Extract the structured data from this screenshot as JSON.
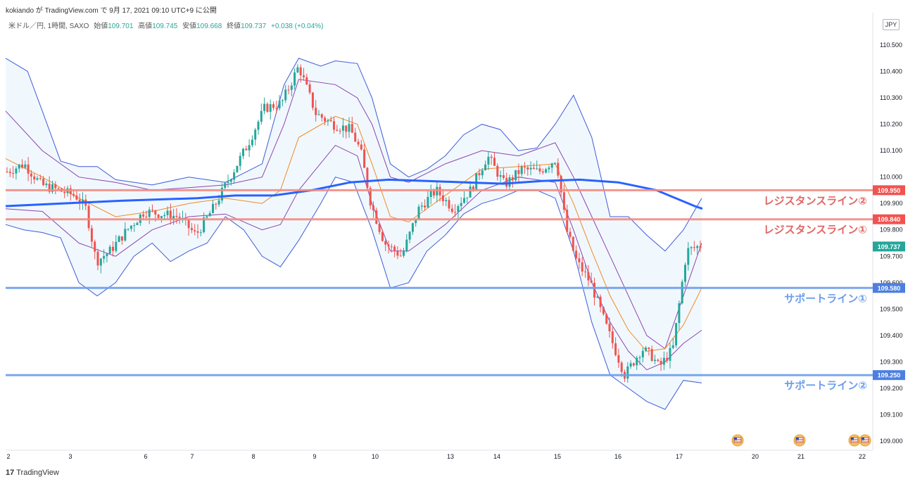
{
  "header": {
    "attribution": "kokiando が TradingView.com で 9月 17, 2021 09:10 UTC+9 に公開",
    "symbol": "米ドル／円, 1時間, SAXO",
    "open_label": "始値",
    "open_value": "109.701",
    "high_label": "高値",
    "high_value": "109.745",
    "low_label": "安値",
    "low_value": "109.668",
    "close_label": "終値",
    "close_value": "109.737",
    "change": "+0.038 (+0.04%)"
  },
  "currency": "JPY",
  "footer": {
    "logo_glyph": "17",
    "brand": "TradingView"
  },
  "colors": {
    "up": "#26a69a",
    "down": "#ef5350",
    "resistance": "#f28b82",
    "resistance_tag": "#f05350",
    "support": "#6d9eeb",
    "support_tag": "#4c7fe0",
    "ma_long": "#2962ff",
    "bb_outer": "#3f5bd8",
    "bb_inner": "#8e44ad",
    "bb_mid": "#f08a24",
    "bb_fill": "#e3f2fd",
    "current_tag": "#26a69a"
  },
  "chart_data": {
    "type": "candlestick",
    "instrument": "米ドル／円",
    "timeframe": "1時間",
    "ylim": [
      109.0,
      110.6
    ],
    "y_ticks": [
      "110.500",
      "110.400",
      "110.300",
      "110.200",
      "110.100",
      "110.000",
      "109.900",
      "109.800",
      "109.700",
      "109.600",
      "109.500",
      "109.400",
      "109.300",
      "109.200",
      "109.100",
      "109.000"
    ],
    "x_ticks": [
      "2",
      "3",
      "6",
      "7",
      "8",
      "9",
      "10",
      "13",
      "14",
      "15",
      "16",
      "17",
      "20",
      "21",
      "22"
    ],
    "current_price": "109.737",
    "horizontal_lines": [
      {
        "label": "レジスタンスライン②",
        "price": "109.950",
        "kind": "resistance"
      },
      {
        "label": "レジスタンスライン①",
        "price": "109.840",
        "kind": "resistance"
      },
      {
        "label": "サポートライン①",
        "price": "109.580",
        "kind": "support"
      },
      {
        "label": "サポートライン②",
        "price": "109.250",
        "kind": "support"
      }
    ],
    "ma_long_path": [
      [
        0,
        109.89
      ],
      [
        3,
        109.91
      ],
      [
        5,
        109.92
      ],
      [
        6,
        109.93
      ],
      [
        7,
        109.93
      ],
      [
        8,
        109.95
      ],
      [
        9,
        109.98
      ],
      [
        10,
        109.99
      ],
      [
        11,
        109.985
      ],
      [
        12,
        109.98
      ],
      [
        13,
        109.975
      ],
      [
        14,
        109.985
      ],
      [
        15,
        109.99
      ],
      [
        16,
        109.98
      ],
      [
        17,
        109.95
      ],
      [
        18,
        109.89
      ],
      [
        18.2,
        109.88
      ]
    ],
    "bb_outer_upper": [
      [
        0,
        110.45
      ],
      [
        0.6,
        110.4
      ],
      [
        1,
        110.25
      ],
      [
        1.5,
        110.06
      ],
      [
        2,
        110.04
      ],
      [
        2.5,
        110.04
      ],
      [
        3,
        109.99
      ],
      [
        4,
        109.97
      ],
      [
        5,
        110.0
      ],
      [
        6,
        109.98
      ],
      [
        7,
        110.05
      ],
      [
        7.6,
        110.35
      ],
      [
        8,
        110.45
      ],
      [
        8.6,
        110.42
      ],
      [
        9,
        110.44
      ],
      [
        9.6,
        110.43
      ],
      [
        10,
        110.3
      ],
      [
        10.5,
        110.05
      ],
      [
        11,
        110.0
      ],
      [
        11.5,
        110.03
      ],
      [
        12,
        110.08
      ],
      [
        12.5,
        110.16
      ],
      [
        13,
        110.2
      ],
      [
        13.5,
        110.18
      ],
      [
        14,
        110.1
      ],
      [
        14.5,
        110.11
      ],
      [
        15,
        110.2
      ],
      [
        15.5,
        110.31
      ],
      [
        16,
        110.15
      ],
      [
        16.5,
        109.85
      ],
      [
        17,
        109.85
      ],
      [
        17.5,
        109.78
      ],
      [
        18,
        109.72
      ],
      [
        18.5,
        109.8
      ],
      [
        19,
        109.92
      ]
    ],
    "bb_outer_lower": [
      [
        0,
        109.82
      ],
      [
        0.5,
        109.8
      ],
      [
        1,
        109.79
      ],
      [
        1.5,
        109.77
      ],
      [
        2,
        109.6
      ],
      [
        2.5,
        109.55
      ],
      [
        3,
        109.6
      ],
      [
        3.5,
        109.7
      ],
      [
        4,
        109.75
      ],
      [
        4.5,
        109.68
      ],
      [
        5,
        109.72
      ],
      [
        5.5,
        109.75
      ],
      [
        6,
        109.85
      ],
      [
        6.5,
        109.8
      ],
      [
        7,
        109.7
      ],
      [
        7.5,
        109.66
      ],
      [
        8,
        109.76
      ],
      [
        8.6,
        109.9
      ],
      [
        9,
        110.0
      ],
      [
        9.5,
        109.98
      ],
      [
        10,
        109.8
      ],
      [
        10.5,
        109.58
      ],
      [
        11,
        109.6
      ],
      [
        11.5,
        109.72
      ],
      [
        12,
        109.78
      ],
      [
        12.5,
        109.86
      ],
      [
        13,
        109.9
      ],
      [
        13.5,
        109.92
      ],
      [
        14,
        109.95
      ],
      [
        14.5,
        109.95
      ],
      [
        15,
        109.92
      ],
      [
        15.5,
        109.72
      ],
      [
        16,
        109.45
      ],
      [
        16.5,
        109.25
      ],
      [
        17,
        109.2
      ],
      [
        17.5,
        109.15
      ],
      [
        18,
        109.12
      ],
      [
        18.5,
        109.23
      ],
      [
        19,
        109.22
      ]
    ],
    "bb_inner_upper": [
      [
        0,
        110.25
      ],
      [
        1,
        110.1
      ],
      [
        2,
        110.0
      ],
      [
        3,
        109.98
      ],
      [
        4,
        109.95
      ],
      [
        5,
        109.96
      ],
      [
        6,
        109.97
      ],
      [
        7,
        110.0
      ],
      [
        7.6,
        110.2
      ],
      [
        8,
        110.37
      ],
      [
        9,
        110.35
      ],
      [
        9.6,
        110.3
      ],
      [
        10,
        110.2
      ],
      [
        10.5,
        110.0
      ],
      [
        11,
        109.98
      ],
      [
        12,
        110.05
      ],
      [
        13,
        110.1
      ],
      [
        14,
        110.08
      ],
      [
        15,
        110.13
      ],
      [
        15.5,
        110.0
      ],
      [
        16,
        109.85
      ],
      [
        16.5,
        109.7
      ],
      [
        17,
        109.55
      ],
      [
        17.5,
        109.4
      ],
      [
        18,
        109.35
      ],
      [
        18.5,
        109.55
      ],
      [
        19,
        109.75
      ]
    ],
    "bb_inner_lower": [
      [
        0,
        109.88
      ],
      [
        1,
        109.87
      ],
      [
        2,
        109.75
      ],
      [
        3,
        109.7
      ],
      [
        4,
        109.8
      ],
      [
        5,
        109.85
      ],
      [
        6,
        109.86
      ],
      [
        7,
        109.8
      ],
      [
        7.5,
        109.82
      ],
      [
        8,
        109.95
      ],
      [
        9,
        110.12
      ],
      [
        9.6,
        110.08
      ],
      [
        10,
        109.9
      ],
      [
        10.5,
        109.72
      ],
      [
        11,
        109.72
      ],
      [
        12,
        109.82
      ],
      [
        13,
        109.95
      ],
      [
        14,
        110.0
      ],
      [
        15,
        109.98
      ],
      [
        15.5,
        109.8
      ],
      [
        16,
        109.6
      ],
      [
        16.5,
        109.45
      ],
      [
        17,
        109.34
      ],
      [
        17.5,
        109.27
      ],
      [
        18,
        109.3
      ],
      [
        18.5,
        109.37
      ],
      [
        19,
        109.42
      ]
    ],
    "bb_mid": [
      [
        0,
        110.07
      ],
      [
        1,
        110.0
      ],
      [
        2,
        109.92
      ],
      [
        3,
        109.85
      ],
      [
        4,
        109.87
      ],
      [
        5,
        109.9
      ],
      [
        6,
        109.92
      ],
      [
        7,
        109.9
      ],
      [
        7.5,
        109.95
      ],
      [
        8,
        110.15
      ],
      [
        9,
        110.23
      ],
      [
        9.6,
        110.2
      ],
      [
        10,
        110.05
      ],
      [
        10.5,
        109.85
      ],
      [
        11,
        109.83
      ],
      [
        12,
        109.93
      ],
      [
        13,
        110.03
      ],
      [
        14,
        110.04
      ],
      [
        15,
        110.05
      ],
      [
        15.5,
        109.9
      ],
      [
        16,
        109.72
      ],
      [
        16.5,
        109.55
      ],
      [
        17,
        109.42
      ],
      [
        17.5,
        109.34
      ],
      [
        18,
        109.35
      ],
      [
        18.5,
        109.44
      ],
      [
        19,
        109.58
      ]
    ],
    "price_path": [
      [
        0,
        110.02
      ],
      [
        0.5,
        110.05
      ],
      [
        1,
        109.97
      ],
      [
        1.5,
        109.95
      ],
      [
        2,
        109.93
      ],
      [
        2.3,
        109.88
      ],
      [
        2.6,
        109.68
      ],
      [
        3,
        109.72
      ],
      [
        3.5,
        109.8
      ],
      [
        4,
        109.87
      ],
      [
        4.5,
        109.86
      ],
      [
        5,
        109.85
      ],
      [
        5.5,
        109.78
      ],
      [
        6,
        109.88
      ],
      [
        6.5,
        110.0
      ],
      [
        7,
        110.12
      ],
      [
        7.5,
        110.26
      ],
      [
        8,
        110.28
      ],
      [
        8.5,
        110.42
      ],
      [
        9,
        110.24
      ],
      [
        9.5,
        110.2
      ],
      [
        10,
        110.18
      ],
      [
        10.3,
        110.1
      ],
      [
        10.6,
        109.9
      ],
      [
        11,
        109.75
      ],
      [
        11.5,
        109.7
      ],
      [
        12,
        109.88
      ],
      [
        12.5,
        109.95
      ],
      [
        13,
        109.88
      ],
      [
        13.5,
        109.95
      ],
      [
        14,
        110.08
      ],
      [
        14.5,
        109.97
      ],
      [
        15,
        110.03
      ],
      [
        15.5,
        110.02
      ],
      [
        16,
        110.07
      ],
      [
        16.3,
        109.8
      ],
      [
        16.6,
        109.68
      ],
      [
        17,
        109.6
      ],
      [
        17.5,
        109.42
      ],
      [
        18,
        109.25
      ],
      [
        18.5,
        109.35
      ],
      [
        18.8,
        109.32
      ],
      [
        19,
        109.28
      ],
      [
        19.4,
        109.35
      ],
      [
        19.8,
        109.72
      ],
      [
        20.2,
        109.74
      ]
    ]
  }
}
